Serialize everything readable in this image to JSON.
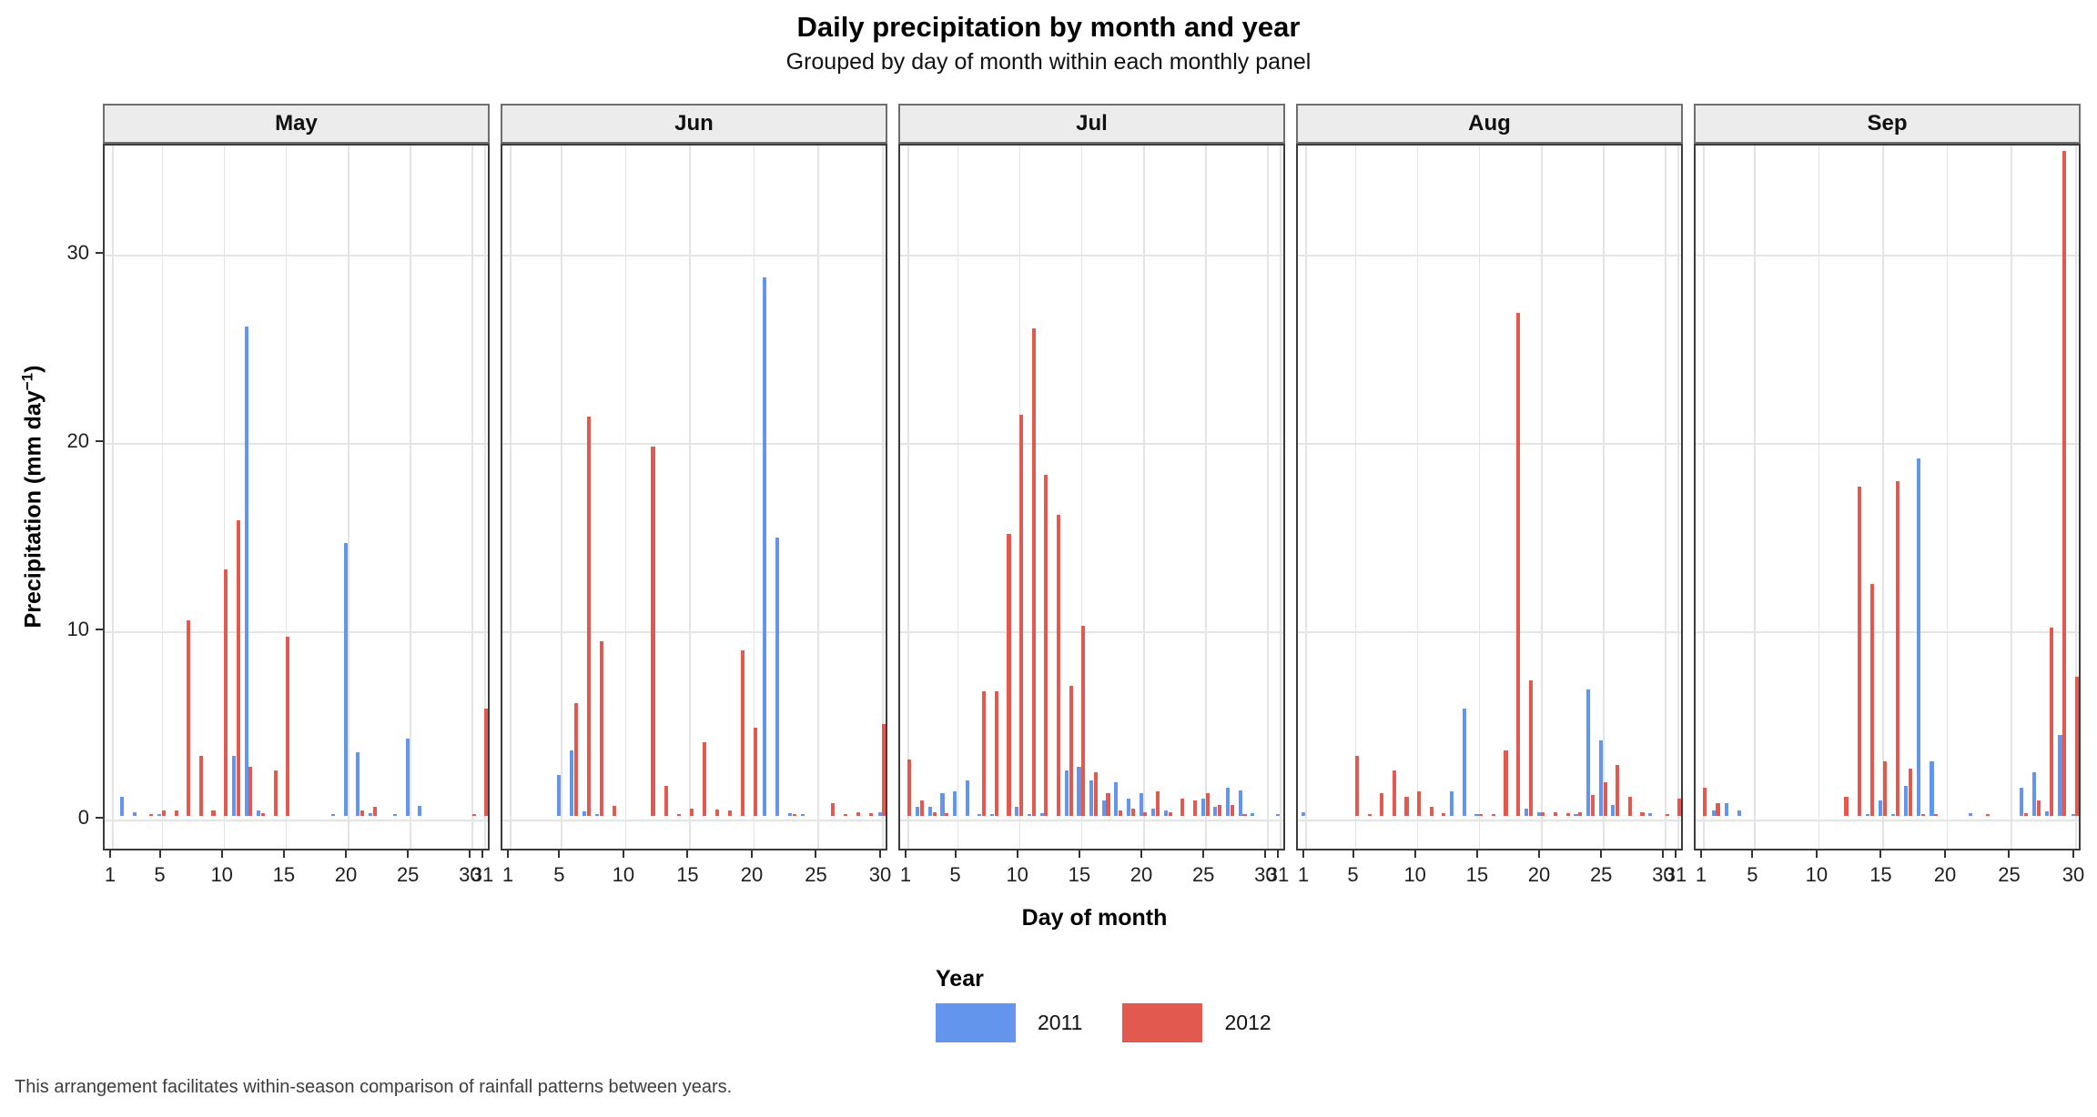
{
  "chart_data": {
    "type": "bar",
    "title": "Daily precipitation by month and year",
    "subtitle": "Grouped by day of month within each monthly panel",
    "xlabel": "Day of month",
    "ylabel": "Precipitation (mm day^-1)",
    "ylabel_parts": {
      "text": "Precipitation (mm day",
      "sup": "−1",
      "close": ")"
    },
    "caption": "This arrangement facilitates within-season comparison of rainfall patterns between years.",
    "ylim": [
      0,
      36.5
    ],
    "yticks": [
      0,
      10,
      20,
      30
    ],
    "grid": "major",
    "legend": {
      "title": "Year",
      "position": "bottom",
      "entries": [
        {
          "label": "2011",
          "color": "#6495ED"
        },
        {
          "label": "2012",
          "color": "#E2594F"
        }
      ]
    },
    "series_names": [
      "2011",
      "2012"
    ],
    "facets": [
      {
        "month": "May",
        "ndays": 31,
        "xticks": [
          1,
          5,
          10,
          15,
          20,
          25,
          30,
          31
        ],
        "bars": [
          [
            2,
            1.0,
            null
          ],
          [
            3,
            0.2,
            null
          ],
          [
            4,
            null,
            0.1
          ],
          [
            5,
            0.1,
            0.3
          ],
          [
            6,
            null,
            0.3
          ],
          [
            7,
            null,
            10.4
          ],
          [
            8,
            null,
            3.2
          ],
          [
            9,
            null,
            0.3
          ],
          [
            10,
            null,
            13.1
          ],
          [
            11,
            3.2,
            15.7
          ],
          [
            12,
            26.0,
            2.6
          ],
          [
            13,
            0.3,
            0.15
          ],
          [
            14,
            null,
            2.4
          ],
          [
            15,
            null,
            9.5
          ],
          [
            19,
            0.1,
            null
          ],
          [
            20,
            14.5,
            null
          ],
          [
            21,
            3.4,
            0.3
          ],
          [
            22,
            0.15,
            0.5
          ],
          [
            24,
            0.1,
            null
          ],
          [
            25,
            4.1,
            null
          ],
          [
            26,
            0.55,
            null
          ],
          [
            30,
            null,
            0.1
          ],
          [
            31,
            null,
            5.7
          ]
        ]
      },
      {
        "month": "Jun",
        "ndays": 30,
        "xticks": [
          1,
          5,
          10,
          15,
          20,
          25,
          30
        ],
        "bars": [
          [
            5,
            2.2,
            null
          ],
          [
            6,
            3.5,
            6.0
          ],
          [
            7,
            0.25,
            21.2
          ],
          [
            8,
            0.1,
            9.3
          ],
          [
            9,
            null,
            0.55
          ],
          [
            12,
            null,
            19.6
          ],
          [
            13,
            null,
            1.6
          ],
          [
            14,
            null,
            0.1
          ],
          [
            15,
            null,
            0.4
          ],
          [
            16,
            null,
            3.9
          ],
          [
            17,
            null,
            0.35
          ],
          [
            18,
            null,
            0.3
          ],
          [
            19,
            null,
            8.8
          ],
          [
            20,
            null,
            4.7
          ],
          [
            21,
            28.6,
            null
          ],
          [
            22,
            14.8,
            null
          ],
          [
            23,
            0.15,
            0.1
          ],
          [
            24,
            0.1,
            null
          ],
          [
            26,
            null,
            0.7
          ],
          [
            27,
            null,
            0.1
          ],
          [
            28,
            null,
            0.2
          ],
          [
            29,
            null,
            0.15
          ],
          [
            30,
            0.2,
            4.9
          ]
        ]
      },
      {
        "month": "Jul",
        "ndays": 31,
        "xticks": [
          1,
          5,
          10,
          15,
          20,
          25,
          30,
          31
        ],
        "bars": [
          [
            1,
            null,
            3.0
          ],
          [
            2,
            0.5,
            0.8
          ],
          [
            3,
            0.5,
            0.2
          ],
          [
            4,
            1.2,
            0.15
          ],
          [
            5,
            1.3,
            null
          ],
          [
            6,
            1.9,
            null
          ],
          [
            7,
            0.1,
            6.6
          ],
          [
            8,
            0.1,
            6.6
          ],
          [
            9,
            null,
            15.0
          ],
          [
            10,
            0.5,
            21.3
          ],
          [
            11,
            0.1,
            25.9
          ],
          [
            12,
            0.15,
            18.1
          ],
          [
            13,
            null,
            16.0
          ],
          [
            14,
            2.4,
            6.9
          ],
          [
            15,
            2.6,
            10.1
          ],
          [
            16,
            1.9,
            2.3
          ],
          [
            17,
            0.8,
            1.2
          ],
          [
            18,
            1.8,
            0.3
          ],
          [
            19,
            0.9,
            0.4
          ],
          [
            20,
            1.2,
            0.2
          ],
          [
            21,
            0.4,
            1.3
          ],
          [
            22,
            0.3,
            0.2
          ],
          [
            23,
            null,
            0.9
          ],
          [
            24,
            null,
            0.8
          ],
          [
            25,
            0.9,
            1.2
          ],
          [
            26,
            0.5,
            0.6
          ],
          [
            27,
            1.5,
            0.6
          ],
          [
            28,
            1.35,
            0.1
          ],
          [
            29,
            0.15,
            null
          ],
          [
            31,
            0.1,
            null
          ]
        ]
      },
      {
        "month": "Aug",
        "ndays": 31,
        "xticks": [
          1,
          5,
          10,
          15,
          20,
          25,
          30,
          31
        ],
        "bars": [
          [
            1,
            0.2,
            null
          ],
          [
            5,
            null,
            3.2
          ],
          [
            6,
            null,
            0.1
          ],
          [
            7,
            null,
            1.2
          ],
          [
            8,
            null,
            2.4
          ],
          [
            9,
            null,
            1.0
          ],
          [
            10,
            null,
            1.3
          ],
          [
            11,
            null,
            0.5
          ],
          [
            12,
            null,
            0.15
          ],
          [
            13,
            1.3,
            null
          ],
          [
            14,
            5.7,
            null
          ],
          [
            15,
            0.1,
            0.1
          ],
          [
            16,
            null,
            0.1
          ],
          [
            17,
            null,
            3.5
          ],
          [
            18,
            null,
            26.7
          ],
          [
            19,
            0.4,
            7.2
          ],
          [
            20,
            0.2,
            0.2
          ],
          [
            21,
            null,
            0.2
          ],
          [
            22,
            null,
            0.15
          ],
          [
            23,
            0.1,
            0.2
          ],
          [
            24,
            6.7,
            1.1
          ],
          [
            25,
            4.0,
            1.8
          ],
          [
            26,
            0.6,
            2.7
          ],
          [
            27,
            null,
            1.0
          ],
          [
            28,
            null,
            0.2
          ],
          [
            29,
            0.15,
            null
          ],
          [
            30,
            null,
            0.1
          ],
          [
            31,
            null,
            0.9
          ]
        ]
      },
      {
        "month": "Sep",
        "ndays": 30,
        "xticks": [
          1,
          5,
          10,
          15,
          20,
          25,
          30
        ],
        "bars": [
          [
            1,
            null,
            1.5
          ],
          [
            2,
            0.3,
            0.7
          ],
          [
            3,
            0.7,
            null
          ],
          [
            4,
            0.3,
            null
          ],
          [
            12,
            null,
            1.0
          ],
          [
            13,
            null,
            17.5
          ],
          [
            14,
            0.1,
            12.3
          ],
          [
            15,
            0.8,
            2.9
          ],
          [
            16,
            0.1,
            17.8
          ],
          [
            17,
            1.6,
            2.5
          ],
          [
            18,
            19.0,
            0.1
          ],
          [
            19,
            2.9,
            0.1
          ],
          [
            22,
            0.15,
            null
          ],
          [
            23,
            null,
            0.1
          ],
          [
            26,
            1.5,
            0.15
          ],
          [
            27,
            2.3,
            0.8
          ],
          [
            28,
            0.25,
            10.0
          ],
          [
            29,
            4.3,
            35.3
          ],
          [
            30,
            0.1,
            7.4
          ]
        ]
      }
    ]
  },
  "colors": {
    "blue_2011": "#6495ED",
    "red_2012": "#E2594F",
    "gridline": "#e4e4e4",
    "panel_border": "#3c3c3c",
    "strip_bg": "#ececec"
  }
}
